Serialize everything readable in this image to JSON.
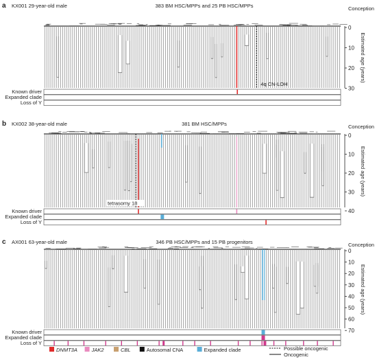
{
  "panels": [
    {
      "letter": "a",
      "donor": "KX001 29-year-old male",
      "title": "383 BM HSC/MPPs and 25 PB HSC/MPPs",
      "axis_top": "Conception",
      "axis_label": "Estimated age (years)",
      "ticks": [
        0,
        10,
        20,
        30
      ],
      "max_age": 30,
      "row_labels": [
        "Known driver",
        "Expanded clade",
        "Loss of Y"
      ],
      "annotation": "4q CN-LOH"
    },
    {
      "letter": "b",
      "donor": "KX002 38-year-old male",
      "title": "381 BM HSC/MPPs",
      "axis_top": "Conception",
      "axis_label": "Estimated age (years)",
      "ticks": [
        0,
        10,
        20,
        30,
        40
      ],
      "max_age": 40,
      "row_labels": [
        "Known driver",
        "Expanded clade",
        "Loss of Y"
      ],
      "annotation": "tetrasomy 18"
    },
    {
      "letter": "c",
      "donor": "AX001 63-year-old male",
      "title": "346 PB HSC/MPPs and 15 PB progenitors",
      "axis_top": "Conception",
      "axis_label": "Estimated age (years)",
      "ticks": [
        0,
        10,
        20,
        30,
        40,
        50,
        60,
        70
      ],
      "max_age": 70,
      "row_labels": [
        "Known driver",
        "Expanded clade",
        "Loss of Y"
      ],
      "annotation": ""
    }
  ],
  "legend": {
    "items": [
      {
        "label": "DNMT3A",
        "color": "#e02b2b",
        "italic": true
      },
      {
        "label": "JAK2",
        "color": "#e98bbf",
        "italic": true
      },
      {
        "label": "CBL",
        "color": "#c8a070",
        "italic": true
      },
      {
        "label": "Autosomal CNA",
        "color": "#111111",
        "italic": false
      },
      {
        "label": "Expanded clade",
        "color": "#5aaed8",
        "italic": false
      }
    ],
    "line_items": [
      {
        "label": "Possible oncogenic",
        "style": "dashed"
      },
      {
        "label": "Oncogenic",
        "style": "solid"
      }
    ]
  }
}
